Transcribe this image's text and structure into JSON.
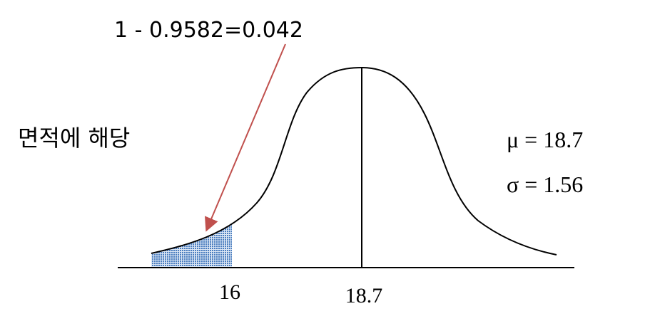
{
  "annotation": "1 - 0.9582=0.042",
  "area_label": "면적에 해당",
  "parameters": [
    "μ = 18.7",
    "σ = 1.56"
  ],
  "axis_labels": [
    "16",
    "18.7"
  ]
}
